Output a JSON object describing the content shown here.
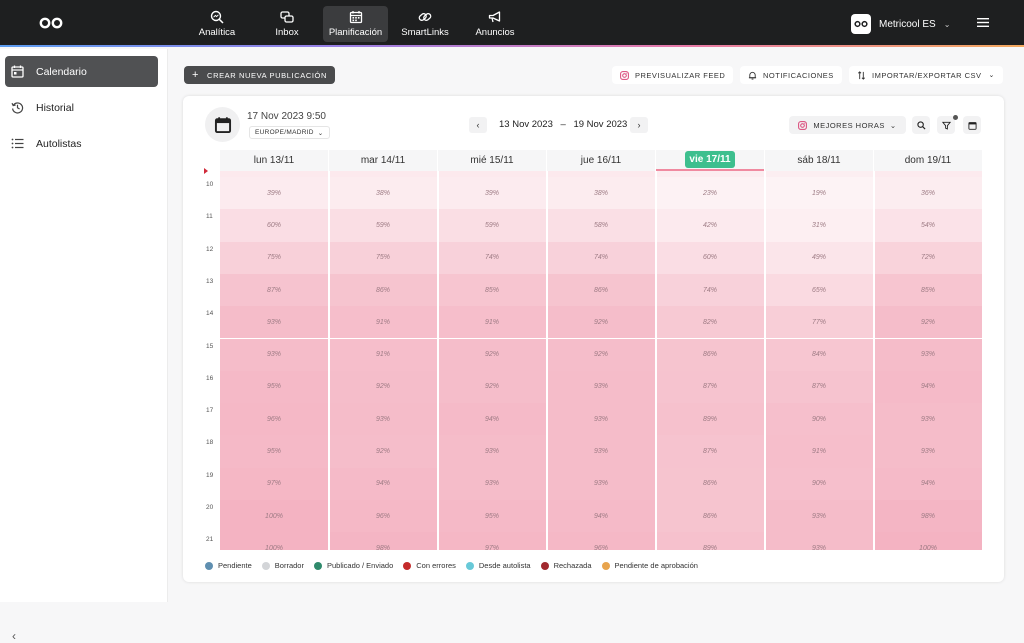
{
  "nav": {
    "items": [
      {
        "label": "Analítica",
        "icon": "analytics-icon"
      },
      {
        "label": "Inbox",
        "icon": "inbox-icon"
      },
      {
        "label": "Planificación",
        "icon": "calendar-icon"
      },
      {
        "label": "SmartLinks",
        "icon": "link-icon"
      },
      {
        "label": "Anuncios",
        "icon": "megaphone-icon"
      }
    ],
    "active": "Planificación"
  },
  "account": {
    "name": "Metricool ES"
  },
  "sidebar": {
    "items": [
      {
        "label": "Calendario",
        "icon": "calendar-icon"
      },
      {
        "label": "Historial",
        "icon": "history-icon"
      },
      {
        "label": "Autolistas",
        "icon": "list-icon"
      }
    ],
    "active": "Calendario"
  },
  "toolbar": {
    "create_label": "CREAR NUEVA PUBLICACIÓN",
    "preview_label": "PREVISUALIZAR FEED",
    "notifications_label": "NOTIFICACIONES",
    "import_export_label": "IMPORTAR/EXPORTAR CSV"
  },
  "calendar": {
    "datetime": "17 Nov 2023 9:50",
    "timezone": "EUROPE/MADRID",
    "range_start": "13 Nov 2023",
    "range_sep": "–",
    "range_end": "19 Nov 2023",
    "best_hours_label": "MEJORES HORAS",
    "days": [
      "lun 13/11",
      "mar 14/11",
      "mié 15/11",
      "jue 16/11",
      "vie 17/11",
      "sáb 18/11",
      "dom 19/11"
    ],
    "today_index": 4,
    "hours": [
      "10",
      "11",
      "12",
      "13",
      "14",
      "15",
      "16",
      "17",
      "18",
      "19",
      "20",
      "21"
    ],
    "values": [
      [
        "39%",
        "38%",
        "39%",
        "38%",
        "23%",
        "19%",
        "36%"
      ],
      [
        "60%",
        "59%",
        "59%",
        "58%",
        "42%",
        "31%",
        "54%"
      ],
      [
        "75%",
        "75%",
        "74%",
        "74%",
        "60%",
        "49%",
        "72%"
      ],
      [
        "87%",
        "86%",
        "85%",
        "86%",
        "74%",
        "65%",
        "85%"
      ],
      [
        "93%",
        "91%",
        "91%",
        "92%",
        "82%",
        "77%",
        "92%"
      ],
      [
        "93%",
        "91%",
        "92%",
        "92%",
        "86%",
        "84%",
        "93%"
      ],
      [
        "95%",
        "92%",
        "92%",
        "93%",
        "87%",
        "87%",
        "94%"
      ],
      [
        "96%",
        "93%",
        "94%",
        "93%",
        "89%",
        "90%",
        "93%"
      ],
      [
        "95%",
        "92%",
        "93%",
        "93%",
        "87%",
        "91%",
        "93%"
      ],
      [
        "97%",
        "94%",
        "93%",
        "93%",
        "86%",
        "90%",
        "94%"
      ],
      [
        "100%",
        "96%",
        "95%",
        "94%",
        "86%",
        "93%",
        "98%"
      ],
      [
        "100%",
        "98%",
        "97%",
        "96%",
        "89%",
        "93%",
        "100%"
      ]
    ],
    "heat_color": "#e8607f"
  },
  "legend": [
    {
      "label": "Pendiente",
      "color": "#5f8fb0"
    },
    {
      "label": "Borrador",
      "color": "#d3d5d8"
    },
    {
      "label": "Publicado / Enviado",
      "color": "#2f8a6c"
    },
    {
      "label": "Con errores",
      "color": "#c42b2b"
    },
    {
      "label": "Desde autolista",
      "color": "#68c9d8"
    },
    {
      "label": "Rechazada",
      "color": "#a1282e"
    },
    {
      "label": "Pendiente de aprobación",
      "color": "#e8a44d"
    }
  ]
}
